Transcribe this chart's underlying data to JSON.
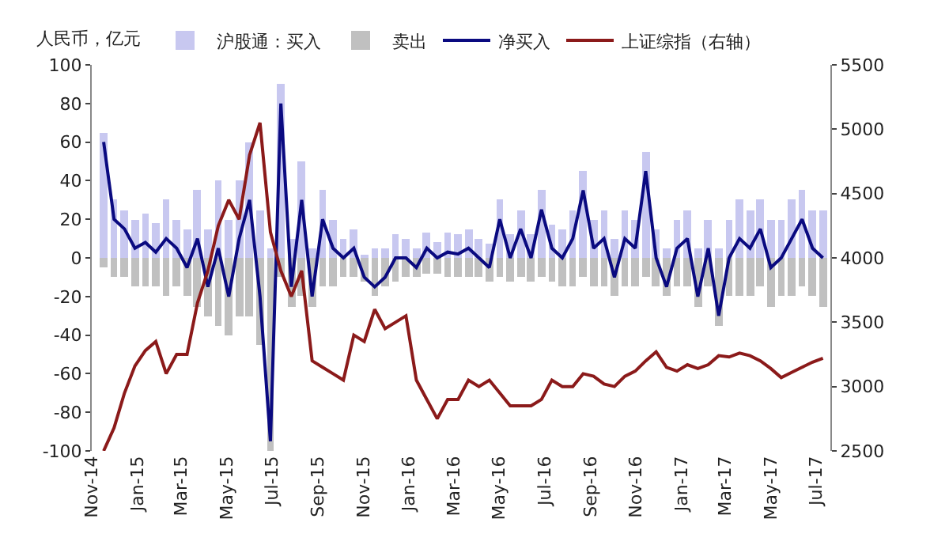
{
  "chart_data": {
    "type": "bar",
    "ylabel": "人民币，亿元",
    "x": [
      "2014-11-17",
      "2014-12-01",
      "2014-12-15",
      "2014-12-29",
      "2015-01-12",
      "2015-01-26",
      "2015-02-09",
      "2015-02-23",
      "2015-03-09",
      "2015-03-23",
      "2015-04-06",
      "2015-04-20",
      "2015-05-04",
      "2015-05-18",
      "2015-06-01",
      "2015-06-15",
      "2015-06-29",
      "2015-07-13",
      "2015-07-27",
      "2015-08-10",
      "2015-08-24",
      "2015-09-07",
      "2015-09-21",
      "2015-10-05",
      "2015-10-19",
      "2015-11-02",
      "2015-11-16",
      "2015-11-30",
      "2015-12-14",
      "2015-12-28",
      "2016-01-11",
      "2016-01-25",
      "2016-02-08",
      "2016-02-22",
      "2016-03-07",
      "2016-03-21",
      "2016-04-04",
      "2016-04-18",
      "2016-05-02",
      "2016-05-16",
      "2016-05-30",
      "2016-06-13",
      "2016-06-27",
      "2016-07-11",
      "2016-07-25",
      "2016-08-08",
      "2016-08-22",
      "2016-09-05",
      "2016-09-19",
      "2016-10-03",
      "2016-10-17",
      "2016-10-31",
      "2016-11-14",
      "2016-11-28",
      "2016-12-12",
      "2016-12-26",
      "2017-01-09",
      "2017-01-23",
      "2017-02-06",
      "2017-02-20",
      "2017-03-06",
      "2017-03-20",
      "2017-04-03",
      "2017-04-17",
      "2017-05-01",
      "2017-05-15",
      "2017-05-29",
      "2017-06-12",
      "2017-06-26",
      "2017-07-10"
    ],
    "series": [
      {
        "name": "沪股通：买入",
        "color": "#c8c8f0",
        "values": [
          65,
          30,
          25,
          20,
          23,
          18,
          30,
          20,
          15,
          35,
          15,
          40,
          20,
          40,
          60,
          25,
          5,
          90,
          10,
          50,
          5,
          35,
          20,
          10,
          15,
          2,
          5,
          5,
          12,
          10,
          5,
          13,
          8,
          13,
          12,
          15,
          10,
          7,
          30,
          12,
          25,
          12,
          35,
          17,
          15,
          25,
          45,
          20,
          25,
          10,
          25,
          20,
          55,
          15,
          5,
          20,
          25,
          5,
          20,
          5,
          20,
          30,
          25,
          30,
          20,
          20,
          30,
          35,
          25,
          25
        ]
      },
      {
        "name": "卖出",
        "color": "#c0c0c0",
        "values": [
          -5,
          -10,
          -10,
          -15,
          -15,
          -15,
          -20,
          -15,
          -20,
          -25,
          -30,
          -35,
          -40,
          -30,
          -30,
          -45,
          -100,
          -10,
          -25,
          -20,
          -25,
          -15,
          -15,
          -10,
          -10,
          -12,
          -20,
          -15,
          -12,
          -10,
          -10,
          -8,
          -8,
          -10,
          -10,
          -10,
          -10,
          -12,
          -10,
          -12,
          -10,
          -12,
          -10,
          -12,
          -15,
          -15,
          -10,
          -15,
          -15,
          -20,
          -15,
          -15,
          -10,
          -15,
          -20,
          -15,
          -15,
          -25,
          -15,
          -35,
          -20,
          -20,
          -20,
          -15,
          -25,
          -20,
          -20,
          -15,
          -20,
          -25
        ]
      },
      {
        "name": "净买入",
        "type": "line",
        "color": "#0a0a80",
        "values": [
          60,
          20,
          15,
          5,
          8,
          3,
          10,
          5,
          -5,
          10,
          -15,
          5,
          -20,
          10,
          30,
          -20,
          -95,
          80,
          -15,
          30,
          -20,
          20,
          5,
          0,
          5,
          -10,
          -15,
          -10,
          0,
          0,
          -5,
          5,
          0,
          3,
          2,
          5,
          0,
          -5,
          20,
          0,
          15,
          0,
          25,
          5,
          0,
          10,
          35,
          5,
          10,
          -10,
          10,
          5,
          45,
          0,
          -15,
          5,
          10,
          -20,
          5,
          -30,
          0,
          10,
          5,
          15,
          -5,
          0,
          10,
          20,
          5,
          0
        ]
      },
      {
        "name": "上证综指（右轴）",
        "type": "line",
        "axis": "y2",
        "color": "#8b1a1a",
        "values": [
          2500,
          2680,
          2950,
          3160,
          3280,
          3350,
          3100,
          3250,
          3250,
          3650,
          3900,
          4250,
          4450,
          4300,
          4800,
          5050,
          4200,
          3900,
          3700,
          3900,
          3200,
          3150,
          3100,
          3050,
          3400,
          3350,
          3600,
          3450,
          3500,
          3550,
          3050,
          2900,
          2750,
          2900,
          2900,
          3050,
          3000,
          3050,
          2950,
          2850,
          2850,
          2850,
          2900,
          3050,
          3000,
          3000,
          3100,
          3080,
          3020,
          3000,
          3080,
          3120,
          3200,
          3270,
          3150,
          3120,
          3170,
          3140,
          3170,
          3240,
          3230,
          3260,
          3240,
          3200,
          3140,
          3070,
          3110,
          3150,
          3190,
          3220
        ]
      }
    ],
    "xlim": [
      "2014-11-01",
      "2017-07-20"
    ],
    "xticks": [
      {
        "value": "2014-11-01",
        "label": "Nov-14"
      },
      {
        "value": "2015-01-01",
        "label": "Jan-15"
      },
      {
        "value": "2015-03-01",
        "label": "Mar-15"
      },
      {
        "value": "2015-05-01",
        "label": "May-15"
      },
      {
        "value": "2015-07-01",
        "label": "Jul-15"
      },
      {
        "value": "2015-09-01",
        "label": "Sep-15"
      },
      {
        "value": "2015-11-01",
        "label": "Nov-15"
      },
      {
        "value": "2016-01-01",
        "label": "Jan-16"
      },
      {
        "value": "2016-03-01",
        "label": "Mar-16"
      },
      {
        "value": "2016-05-01",
        "label": "May-16"
      },
      {
        "value": "2016-07-01",
        "label": "Jul-16"
      },
      {
        "value": "2016-09-01",
        "label": "Sep-16"
      },
      {
        "value": "2016-11-01",
        "label": "Nov-16"
      },
      {
        "value": "2017-01-01",
        "label": "Jan-17"
      },
      {
        "value": "2017-03-01",
        "label": "Mar-17"
      },
      {
        "value": "2017-05-01",
        "label": "May-17"
      },
      {
        "value": "2017-07-01",
        "label": "Jul-17"
      }
    ],
    "ylim": [
      -100,
      100
    ],
    "yticks": [
      -100,
      -80,
      -60,
      -40,
      -20,
      0,
      20,
      40,
      60,
      80,
      100
    ],
    "y2lim": [
      2500,
      5500
    ],
    "y2ticks": [
      2500,
      3000,
      3500,
      4000,
      4500,
      5000,
      5500
    ],
    "legend": "top",
    "stacked": true
  }
}
